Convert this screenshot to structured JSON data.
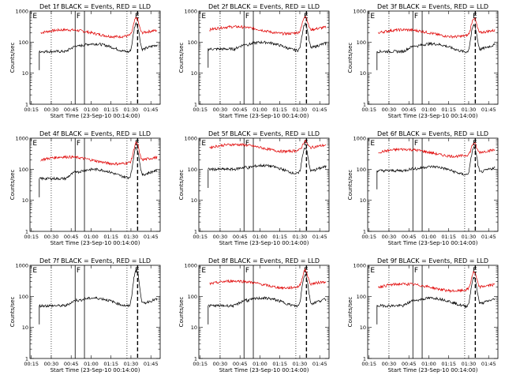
{
  "chart_data": [
    {
      "type": "line",
      "title": "Det 1f BLACK = Events, RED = LLD",
      "xlabel": "Start Time (23-Sep-10 00:14:00)",
      "ylabel": "Counts/sec",
      "yscale": "log",
      "ylim": [
        1,
        1000
      ],
      "x_tick_labels": [
        "00:15",
        "00:30",
        "00:45",
        "01:00",
        "01:15",
        "01:30",
        "01:45"
      ],
      "y_tick_labels": [
        "1",
        "10",
        "100",
        "1000"
      ],
      "markers": [
        {
          "label": "E",
          "time": "00:16"
        },
        {
          "label": "F",
          "time": "00:49"
        },
        {
          "label": "E",
          "time": "01:33"
        }
      ],
      "red": {
        "base": 200,
        "peak": 600
      },
      "black": {
        "start": 50,
        "mid": 80,
        "peak": 400
      }
    },
    {
      "type": "line",
      "title": "Det 2f BLACK = Events, RED = LLD",
      "xlabel": "Start Time (23-Sep-10 00:14:00)",
      "ylabel": "Counts/sec",
      "yscale": "log",
      "ylim": [
        1,
        1000
      ],
      "x_tick_labels": [
        "00:15",
        "00:30",
        "00:45",
        "01:00",
        "01:15",
        "01:30",
        "01:45"
      ],
      "y_tick_labels": [
        "1",
        "10",
        "100",
        "1000"
      ],
      "markers": [
        {
          "label": "E",
          "time": "00:16"
        },
        {
          "label": "F",
          "time": "00:49"
        },
        {
          "label": "E",
          "time": "01:33"
        }
      ],
      "red": {
        "base": 250,
        "peak": 700
      },
      "black": {
        "start": 60,
        "mid": 90,
        "peak": 400
      }
    },
    {
      "type": "line",
      "title": "Det 3f BLACK = Events, RED = LLD",
      "xlabel": "Start Time (23-Sep-10 00:14:00)",
      "ylabel": "Counts/sec",
      "yscale": "log",
      "ylim": [
        1,
        1000
      ],
      "x_tick_labels": [
        "00:15",
        "00:30",
        "00:45",
        "01:00",
        "01:15",
        "01:30",
        "01:45"
      ],
      "y_tick_labels": [
        "1",
        "10",
        "100",
        "1000"
      ],
      "markers": [
        {
          "label": "E",
          "time": "00:16"
        },
        {
          "label": "F",
          "time": "00:49"
        },
        {
          "label": "E",
          "time": "01:33"
        }
      ],
      "red": {
        "base": 200,
        "peak": 600
      },
      "black": {
        "start": 50,
        "mid": 80,
        "peak": 350
      }
    },
    {
      "type": "line",
      "title": "Det 4f BLACK = Events, RED = LLD",
      "xlabel": "Start Time (23-Sep-10 00:14:00)",
      "ylabel": "Counts/sec",
      "yscale": "log",
      "ylim": [
        1,
        1000
      ],
      "x_tick_labels": [
        "00:15",
        "00:30",
        "00:45",
        "01:00",
        "01:15",
        "01:30",
        "01:45"
      ],
      "y_tick_labels": [
        "1",
        "10",
        "100",
        "1000"
      ],
      "markers": [
        {
          "label": "E",
          "time": "00:16"
        },
        {
          "label": "F",
          "time": "00:49"
        },
        {
          "label": "E",
          "time": "01:33"
        }
      ],
      "red": {
        "base": 200,
        "peak": 700
      },
      "black": {
        "start": 50,
        "mid": 90,
        "peak": 500
      }
    },
    {
      "type": "line",
      "title": "Det 5f BLACK = Events, RED = LLD",
      "xlabel": "Start Time (23-Sep-10 00:14:00)",
      "ylabel": "Counts/sec",
      "yscale": "log",
      "ylim": [
        1,
        1000
      ],
      "x_tick_labels": [
        "00:15",
        "00:30",
        "00:45",
        "01:00",
        "01:15",
        "01:30",
        "01:45"
      ],
      "y_tick_labels": [
        "1",
        "10",
        "100",
        "1000"
      ],
      "markers": [
        {
          "label": "E",
          "time": "00:16"
        },
        {
          "label": "F",
          "time": "00:49"
        },
        {
          "label": "E",
          "time": "01:33"
        }
      ],
      "red": {
        "base": 500,
        "peak": 800
      },
      "black": {
        "start": 100,
        "mid": 120,
        "peak": 500
      }
    },
    {
      "type": "line",
      "title": "Det 6f BLACK = Events, RED = LLD",
      "xlabel": "Start Time (23-Sep-10 00:14:00)",
      "ylabel": "Counts/sec",
      "yscale": "log",
      "ylim": [
        1,
        1000
      ],
      "x_tick_labels": [
        "00:15",
        "00:30",
        "00:45",
        "01:00",
        "01:15",
        "01:30",
        "01:45"
      ],
      "y_tick_labels": [
        "1",
        "10",
        "100",
        "1000"
      ],
      "markers": [
        {
          "label": "E",
          "time": "00:16"
        },
        {
          "label": "F",
          "time": "00:49"
        },
        {
          "label": "E",
          "time": "01:33"
        }
      ],
      "red": {
        "base": 350,
        "peak": 700
      },
      "black": {
        "start": 90,
        "mid": 110,
        "peak": 500
      }
    },
    {
      "type": "line",
      "title": "Det 7f BLACK = Events, RED = LLD",
      "xlabel": "Start Time (23-Sep-10 00:14:00)",
      "ylabel": "Counts/sec",
      "yscale": "log",
      "ylim": [
        1,
        1000
      ],
      "x_tick_labels": [
        "00:15",
        "00:30",
        "00:45",
        "01:00",
        "01:15",
        "01:30",
        "01:45"
      ],
      "y_tick_labels": [
        "1",
        "10",
        "100",
        "1000"
      ],
      "markers": [
        {
          "label": "E",
          "time": "00:16"
        },
        {
          "label": "F",
          "time": "00:49"
        },
        {
          "label": "E",
          "time": "01:33"
        }
      ],
      "red": null,
      "black": {
        "start": 50,
        "mid": 80,
        "peak": 700
      }
    },
    {
      "type": "line",
      "title": "Det 8f BLACK = Events, RED = LLD",
      "xlabel": "Start Time (23-Sep-10 00:14:00)",
      "ylabel": "Counts/sec",
      "yscale": "log",
      "ylim": [
        1,
        1000
      ],
      "x_tick_labels": [
        "00:15",
        "00:30",
        "00:45",
        "01:00",
        "01:15",
        "01:30",
        "01:45"
      ],
      "y_tick_labels": [
        "1",
        "10",
        "100",
        "1000"
      ],
      "markers": [
        {
          "label": "E",
          "time": "00:16"
        },
        {
          "label": "F",
          "time": "00:49"
        },
        {
          "label": "E",
          "time": "01:33"
        }
      ],
      "red": {
        "base": 250,
        "peak": 700
      },
      "black": {
        "start": 50,
        "mid": 80,
        "peak": 500
      }
    },
    {
      "type": "line",
      "title": "Det 9f BLACK = Events, RED = LLD",
      "xlabel": "Start Time (23-Sep-10 00:14:00)",
      "ylabel": "Counts/sec",
      "yscale": "log",
      "ylim": [
        1,
        1000
      ],
      "x_tick_labels": [
        "00:15",
        "00:30",
        "00:45",
        "01:00",
        "01:15",
        "01:30",
        "01:45"
      ],
      "y_tick_labels": [
        "1",
        "10",
        "100",
        "1000"
      ],
      "markers": [
        {
          "label": "E",
          "time": "00:16"
        },
        {
          "label": "F",
          "time": "00:49"
        },
        {
          "label": "E",
          "time": "01:33"
        }
      ],
      "red": {
        "base": 200,
        "peak": 600
      },
      "black": {
        "start": 50,
        "mid": 80,
        "peak": 400
      }
    }
  ],
  "colors": {
    "events": "#000000",
    "lld": "#e00000"
  }
}
